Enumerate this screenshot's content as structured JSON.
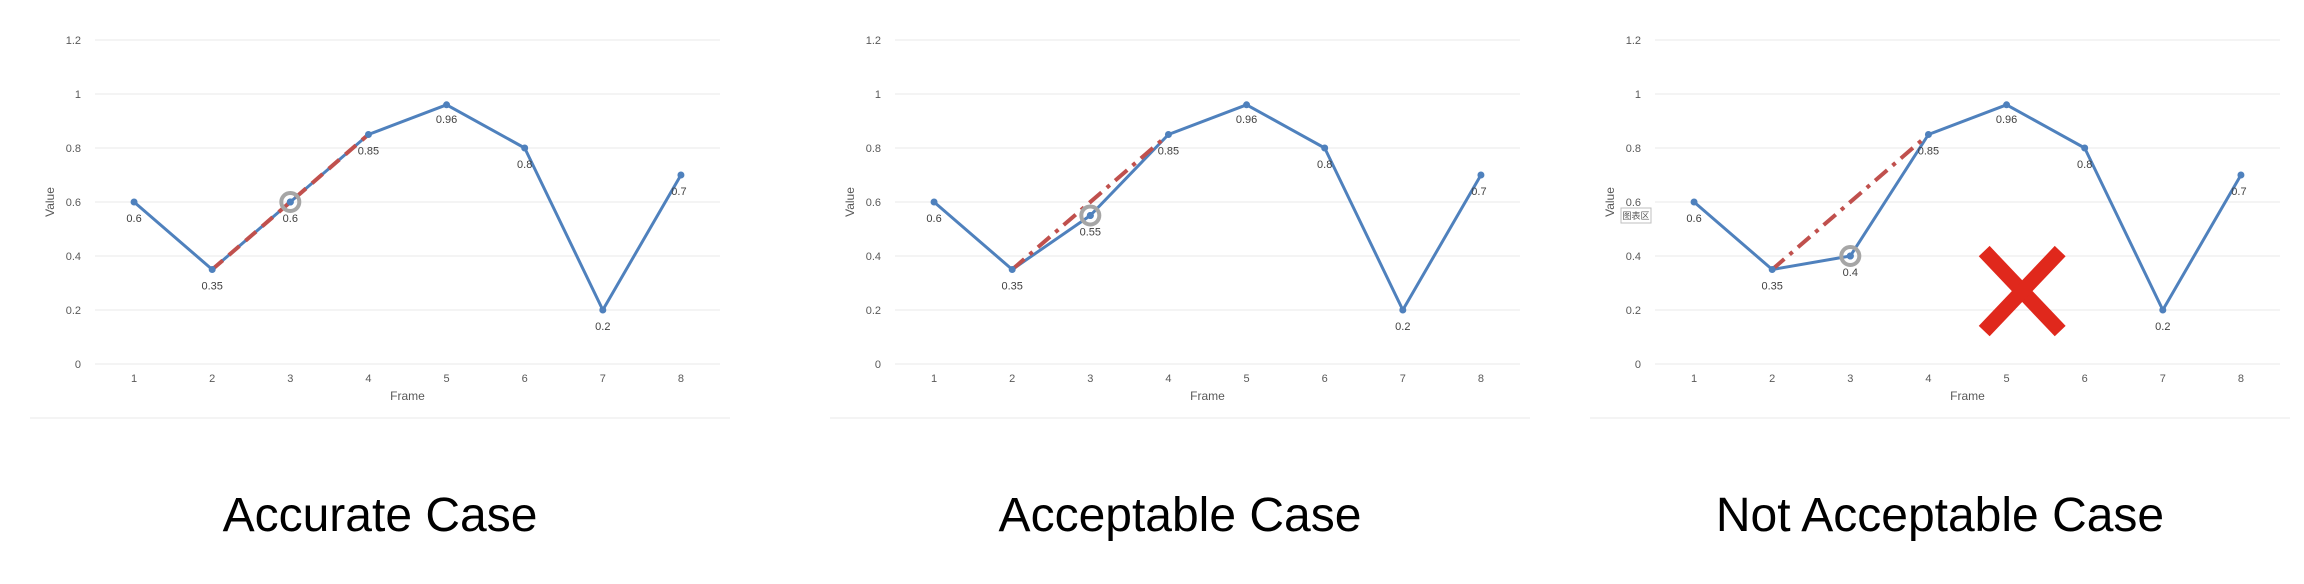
{
  "colors": {
    "series_line": "#4f81bd",
    "dash_line": "#c0504d",
    "highlight_ring": "#a6a6a6",
    "cross": "#e0281c",
    "gridline": "#e8e8e8",
    "tick_text": "#595959"
  },
  "chart_data": [
    {
      "type": "line",
      "caption": "Accurate Case",
      "xlabel": "Frame",
      "ylabel": "Value",
      "ylim": [
        0,
        1.2
      ],
      "yticks": [
        "0",
        "0.2",
        "0.4",
        "0.6",
        "0.8",
        "1",
        "1.2"
      ],
      "categories": [
        "1",
        "2",
        "3",
        "4",
        "5",
        "6",
        "7",
        "8"
      ],
      "series": [
        {
          "values": [
            0.6,
            0.35,
            0.6,
            0.85,
            0.96,
            0.8,
            0.2,
            0.7
          ],
          "labels": [
            "0.6",
            "0.35",
            "0.6",
            "0.85",
            "0.96",
            "0.8",
            "0.2",
            "0.7"
          ]
        }
      ],
      "grid": true,
      "dashed_segment": {
        "from": [
          2,
          0.35
        ],
        "to": [
          4,
          0.85
        ],
        "style": "dashed"
      },
      "highlight_point": [
        3,
        0.6
      ],
      "cross_marker": false,
      "tag_label": ""
    },
    {
      "type": "line",
      "caption": "Acceptable Case",
      "xlabel": "Frame",
      "ylabel": "Value",
      "ylim": [
        0,
        1.2
      ],
      "yticks": [
        "0",
        "0.2",
        "0.4",
        "0.6",
        "0.8",
        "1",
        "1.2"
      ],
      "categories": [
        "1",
        "2",
        "3",
        "4",
        "5",
        "6",
        "7",
        "8"
      ],
      "series": [
        {
          "values": [
            0.6,
            0.35,
            0.55,
            0.85,
            0.96,
            0.8,
            0.2,
            0.7
          ],
          "labels": [
            "0.6",
            "0.35",
            "0.55",
            "0.85",
            "0.96",
            "0.8",
            "0.2",
            "0.7"
          ]
        }
      ],
      "grid": true,
      "dashed_segment": {
        "from": [
          2,
          0.35
        ],
        "to": [
          4,
          0.85
        ],
        "style": "dash-dot"
      },
      "highlight_point": [
        3,
        0.55
      ],
      "cross_marker": false,
      "tag_label": ""
    },
    {
      "type": "line",
      "caption": "Not Acceptable Case",
      "xlabel": "Frame",
      "ylabel": "Value",
      "ylim": [
        0,
        1.2
      ],
      "yticks": [
        "0",
        "0.2",
        "0.4",
        "0.6",
        "0.8",
        "1",
        "1.2"
      ],
      "categories": [
        "1",
        "2",
        "3",
        "4",
        "5",
        "6",
        "7",
        "8"
      ],
      "series": [
        {
          "values": [
            0.6,
            0.35,
            0.4,
            0.85,
            0.96,
            0.8,
            0.2,
            0.7
          ],
          "labels": [
            "0.6",
            "0.35",
            "0.4",
            "0.85",
            "0.96",
            "0.8",
            "0.2",
            "0.7"
          ]
        }
      ],
      "grid": true,
      "dashed_segment": {
        "from": [
          2,
          0.35
        ],
        "to": [
          4,
          0.85
        ],
        "style": "dash-dot"
      },
      "highlight_point": [
        3,
        0.4
      ],
      "cross_marker": true,
      "tag_label": "图表区"
    }
  ]
}
